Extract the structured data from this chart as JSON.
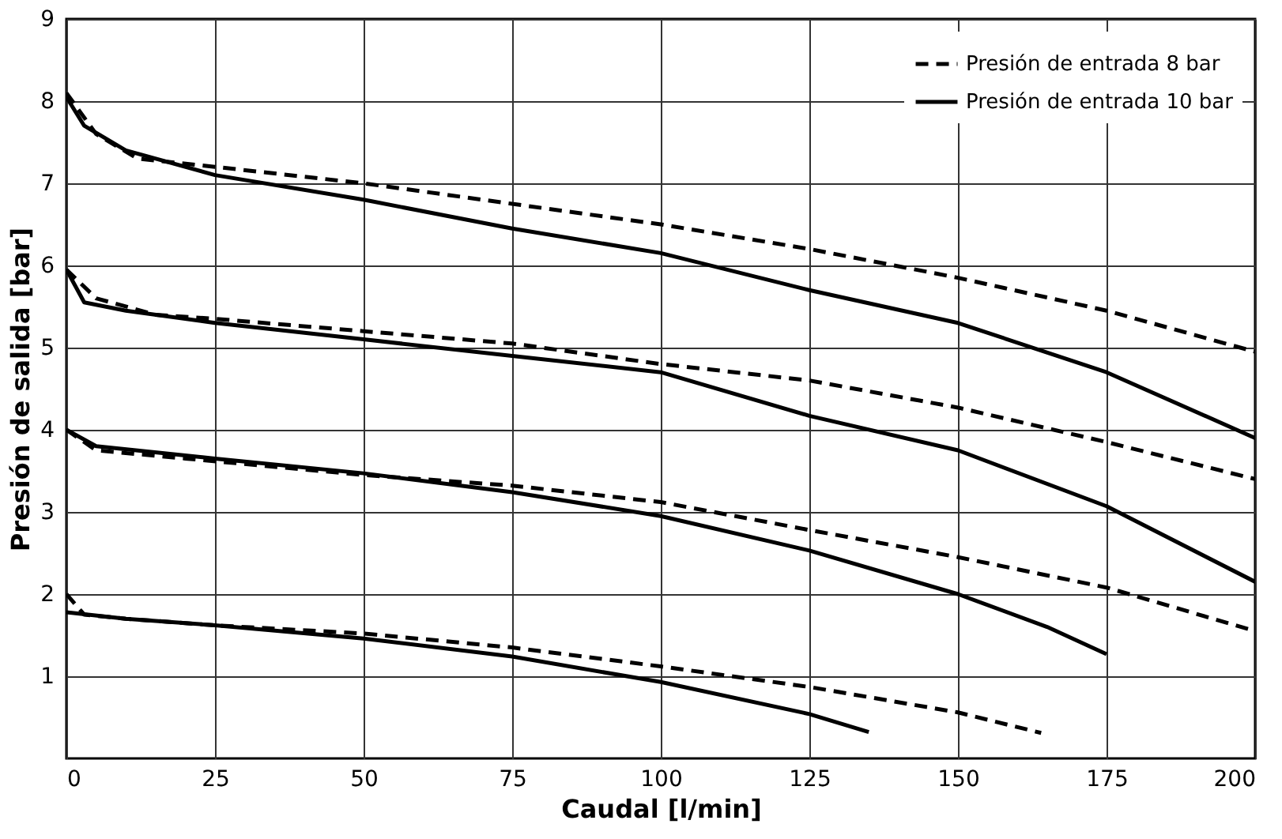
{
  "chart_data": {
    "type": "line",
    "xlabel": "Caudal [l/min]",
    "ylabel": "Presión de salida [bar]",
    "xlim": [
      0,
      200
    ],
    "ylim": [
      0,
      9
    ],
    "xticks": [
      0,
      25,
      50,
      75,
      100,
      125,
      150,
      175,
      200
    ],
    "yticks": [
      1,
      2,
      3,
      4,
      5,
      6,
      7,
      8,
      9
    ],
    "grid": true,
    "legend": "top right",
    "series": [
      {
        "name": "Presión de entrada 8 bar",
        "color": "#000000",
        "line_style": "dashed",
        "x": [
          0,
          5,
          12,
          25,
          50,
          75,
          100,
          125,
          150,
          175,
          200
        ],
        "values": [
          8.1,
          7.6,
          7.3,
          7.2,
          7.0,
          6.75,
          6.5,
          6.2,
          5.85,
          5.45,
          4.95
        ]
      },
      {
        "name": "Presión de entrada 10 bar",
        "color": "#000000",
        "line_style": "solid",
        "x": [
          0,
          3,
          10,
          25,
          50,
          75,
          100,
          125,
          150,
          175,
          200
        ],
        "values": [
          8.05,
          7.7,
          7.4,
          7.1,
          6.8,
          6.45,
          6.15,
          5.7,
          5.3,
          4.7,
          3.9
        ]
      },
      {
        "color": "#000000",
        "line_style": "dashed",
        "x": [
          0,
          5,
          15,
          25,
          50,
          75,
          100,
          125,
          150,
          175,
          200
        ],
        "values": [
          5.95,
          5.6,
          5.4,
          5.35,
          5.2,
          5.05,
          4.8,
          4.6,
          4.27,
          3.85,
          3.4
        ]
      },
      {
        "color": "#000000",
        "line_style": "solid",
        "x": [
          0,
          3,
          10,
          25,
          50,
          75,
          100,
          125,
          150,
          175,
          200
        ],
        "values": [
          5.95,
          5.55,
          5.45,
          5.3,
          5.1,
          4.9,
          4.7,
          4.17,
          3.75,
          3.07,
          2.15
        ]
      },
      {
        "color": "#000000",
        "line_style": "dashed",
        "x": [
          0,
          5,
          20,
          50,
          75,
          100,
          125,
          150,
          175,
          200
        ],
        "values": [
          4.0,
          3.75,
          3.65,
          3.45,
          3.32,
          3.12,
          2.78,
          2.45,
          2.08,
          1.55
        ]
      },
      {
        "color": "#000000",
        "line_style": "solid",
        "x": [
          0,
          5,
          25,
          50,
          75,
          100,
          125,
          150,
          165,
          175
        ],
        "values": [
          4.0,
          3.8,
          3.65,
          3.47,
          3.24,
          2.95,
          2.53,
          2.0,
          1.6,
          1.27
        ]
      },
      {
        "color": "#000000",
        "line_style": "dashed",
        "x": [
          0,
          3,
          10,
          25,
          50,
          75,
          100,
          125,
          150,
          164
        ],
        "values": [
          2.0,
          1.75,
          1.7,
          1.62,
          1.52,
          1.35,
          1.12,
          0.87,
          0.56,
          0.31
        ]
      },
      {
        "color": "#000000",
        "line_style": "solid",
        "x": [
          0,
          10,
          25,
          50,
          75,
          100,
          125,
          135
        ],
        "values": [
          1.78,
          1.7,
          1.62,
          1.46,
          1.24,
          0.93,
          0.54,
          0.32
        ]
      }
    ]
  }
}
